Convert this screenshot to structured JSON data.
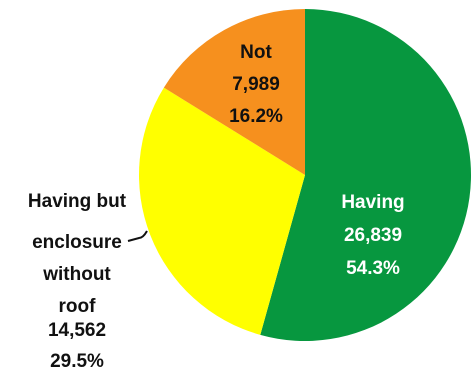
{
  "chart_data": {
    "type": "pie",
    "title": "",
    "slices": [
      {
        "label": "Having",
        "value": 26839,
        "value_text": "26,839",
        "percent_text": "54.3%",
        "color": "#07973f"
      },
      {
        "label": "Having but enclosure without roof",
        "value": 14562,
        "value_text": "14,562",
        "percent_text": "29.5%",
        "color": "#ffff00"
      },
      {
        "label": "Not",
        "value": 7989,
        "value_text": "7,989",
        "percent_text": "16.2%",
        "color": "#f6901e"
      }
    ]
  }
}
